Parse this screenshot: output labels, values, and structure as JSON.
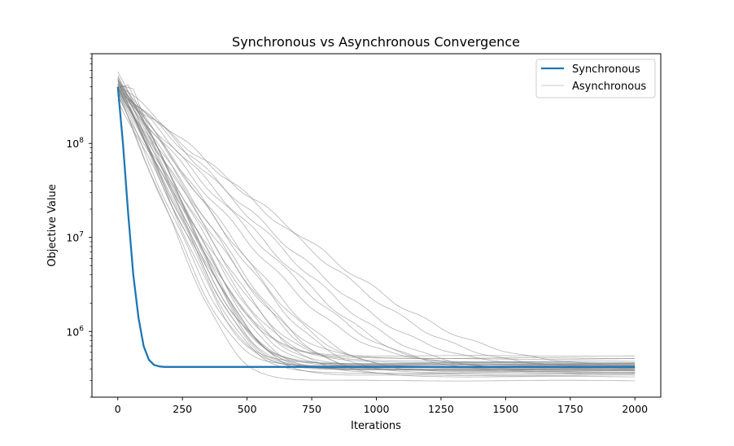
{
  "chart_data": {
    "type": "line",
    "title": "Synchronous vs Asynchronous Convergence",
    "xlabel": "Iterations",
    "ylabel": "Objective Value",
    "xlim": [
      -100,
      2100
    ],
    "ylim": [
      200000,
      900000000
    ],
    "yscale": "log",
    "grid": false,
    "legend_position": "top-right",
    "x_ticks": [
      0,
      250,
      500,
      750,
      1000,
      1250,
      1500,
      1750,
      2000
    ],
    "x_tick_labels": [
      "0",
      "250",
      "500",
      "750",
      "1000",
      "1250",
      "1500",
      "1750",
      "2000"
    ],
    "y_ticks": [
      1000000,
      10000000,
      100000000
    ],
    "y_tick_labels": [
      {
        "base": "10",
        "exp": "6"
      },
      {
        "base": "10",
        "exp": "7"
      },
      {
        "base": "10",
        "exp": "8"
      }
    ],
    "legend": [
      {
        "label": "Synchronous",
        "color": "#1f77b4",
        "style": "thick"
      },
      {
        "label": "Asynchronous",
        "color": "#c8c8c8",
        "style": "thin"
      }
    ],
    "series": [
      {
        "name": "Synchronous",
        "color": "#1f77b4",
        "x": [
          0,
          20,
          40,
          60,
          80,
          100,
          120,
          140,
          160,
          180,
          200,
          250,
          300,
          500,
          1000,
          1500,
          2000
        ],
        "y": [
          400000000,
          100000000,
          18000000,
          4000000,
          1400000,
          700000,
          500000,
          440000,
          425000,
          420000,
          420000,
          420000,
          420000,
          420000,
          420000,
          420000,
          420000
        ]
      },
      {
        "name": "Asynchronous",
        "color": "#808080",
        "runs": [
          {
            "id": 1,
            "y0": 350000000,
            "floor": 300000,
            "k": 0.0155,
            "d": 0
          },
          {
            "id": 2,
            "y0": 500000000,
            "floor": 420000,
            "k": 0.015,
            "d": 0
          },
          {
            "id": 3,
            "y0": 420000000,
            "floor": 360000,
            "k": 0.014,
            "d": 0
          },
          {
            "id": 4,
            "y0": 380000000,
            "floor": 550000,
            "k": 0.012,
            "d": 0
          },
          {
            "id": 5,
            "y0": 450000000,
            "floor": 380000,
            "k": 0.01,
            "d": 0
          },
          {
            "id": 6,
            "y0": 300000000,
            "floor": 450000,
            "k": 0.0125,
            "d": 0
          },
          {
            "id": 7,
            "y0": 600000000,
            "floor": 400000,
            "k": 0.0135,
            "d": 0
          },
          {
            "id": 8,
            "y0": 400000000,
            "floor": 330000,
            "k": 0.0095,
            "d": 0
          },
          {
            "id": 9,
            "y0": 320000000,
            "floor": 520000,
            "k": 0.0115,
            "d": 0
          },
          {
            "id": 10,
            "y0": 470000000,
            "floor": 410000,
            "k": 0.009,
            "d": 0
          },
          {
            "id": 11,
            "y0": 360000000,
            "floor": 460000,
            "k": 0.0145,
            "d": 0
          },
          {
            "id": 12,
            "y0": 430000000,
            "floor": 390000,
            "k": 0.013,
            "d": 0
          },
          {
            "id": 13,
            "y0": 390000000,
            "floor": 350000,
            "k": 0.0105,
            "d": 0
          },
          {
            "id": 14,
            "y0": 500000000,
            "floor": 480000,
            "k": 0.011,
            "d": 0
          },
          {
            "id": 15,
            "y0": 330000000,
            "floor": 430000,
            "k": 0.015,
            "d": 0
          },
          {
            "id": 16,
            "y0": 410000000,
            "floor": 370000,
            "k": 0.0085,
            "d": 0
          },
          {
            "id": 17,
            "y0": 550000000,
            "floor": 440000,
            "k": 0.012,
            "d": 0
          },
          {
            "id": 18,
            "y0": 440000000,
            "floor": 400000,
            "k": 0.0138,
            "d": 0
          },
          {
            "id": 19,
            "y0": 370000000,
            "floor": 510000,
            "k": 0.0098,
            "d": 0
          },
          {
            "id": 20,
            "y0": 460000000,
            "floor": 340000,
            "k": 0.0128,
            "d": 0
          },
          {
            "id": 21,
            "y0": 400000000,
            "floor": 420000,
            "k": 0.0118,
            "d": 0
          },
          {
            "id": 22,
            "y0": 520000000,
            "floor": 390000,
            "k": 0.0142,
            "d": 0
          },
          {
            "id": 23,
            "y0": 340000000,
            "floor": 470000,
            "k": 0.0108,
            "d": 0
          },
          {
            "id": 24,
            "y0": 480000000,
            "floor": 360000,
            "k": 0.0092,
            "d": 0
          },
          {
            "id": 25,
            "y0": 420000000,
            "floor": 450000,
            "k": 0.0133,
            "d": 0
          },
          {
            "id": 26,
            "y0": 390000000,
            "floor": 410000,
            "k": 0.007,
            "d": 0
          },
          {
            "id": 27,
            "y0": 450000000,
            "floor": 380000,
            "k": 0.0065,
            "d": 0
          },
          {
            "id": 28,
            "y0": 400000000,
            "floor": 430000,
            "k": 0.006,
            "d": 0
          },
          {
            "id": 29,
            "y0": 430000000,
            "floor": 400000,
            "k": 0.0055,
            "d": 0
          },
          {
            "id": 30,
            "y0": 380000000,
            "floor": 460000,
            "k": 0.0075,
            "d": 0
          },
          {
            "id": 31,
            "y0": 350000000,
            "floor": 420000,
            "k": 0.005,
            "d": 0
          },
          {
            "id": 32,
            "y0": 410000000,
            "floor": 370000,
            "k": 0.0068,
            "d": 0
          },
          {
            "id": 33,
            "y0": 400000000,
            "floor": 440000,
            "k": 0.014,
            "d": 40
          },
          {
            "id": 34,
            "y0": 380000000,
            "floor": 410000,
            "k": 0.015,
            "d": 60
          },
          {
            "id": 35,
            "y0": 420000000,
            "floor": 390000,
            "k": 0.013,
            "d": 30
          }
        ]
      }
    ]
  }
}
